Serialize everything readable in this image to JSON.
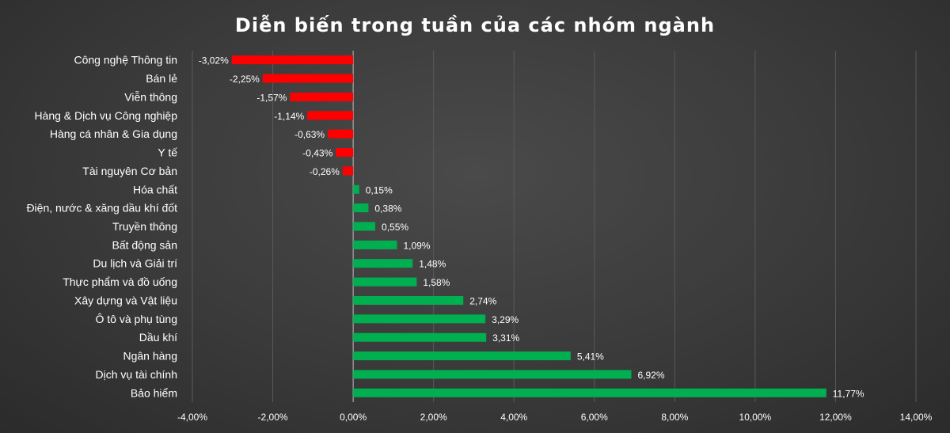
{
  "chart_data": {
    "type": "bar",
    "orientation": "horizontal",
    "title": "Diễn biến trong tuần của các nhóm ngành",
    "xlabel": "",
    "ylabel": "",
    "xlim": [
      -4,
      14
    ],
    "x_ticks": [
      -4,
      -2,
      0,
      2,
      4,
      6,
      8,
      10,
      12,
      14
    ],
    "x_tick_labels": [
      "-4,00%",
      "-2,00%",
      "0,00%",
      "2,00%",
      "4,00%",
      "6,00%",
      "8,00%",
      "10,00%",
      "12,00%",
      "14,00%"
    ],
    "grid": true,
    "legend": "none",
    "colors": {
      "negative": "#ff0000",
      "positive": "#00b050"
    },
    "categories": [
      "Công nghệ Thông tin",
      "Bán lẻ",
      "Viễn thông",
      "Hàng & Dịch vụ Công nghiệp",
      "Hàng cá nhân & Gia dụng",
      "Y tế",
      "Tài nguyên Cơ bản",
      "Hóa chất",
      "Điện, nước & xăng dầu khí đốt",
      "Truyền thông",
      "Bất động sản",
      "Du lịch và Giải trí",
      "Thực phẩm và đồ uống",
      "Xây dựng và Vật liệu",
      "Ô tô và phụ tùng",
      "Dầu khí",
      "Ngân hàng",
      "Dịch vụ tài chính",
      "Bảo hiểm"
    ],
    "values": [
      -3.02,
      -2.25,
      -1.57,
      -1.14,
      -0.63,
      -0.43,
      -0.26,
      0.15,
      0.38,
      0.55,
      1.09,
      1.48,
      1.58,
      2.74,
      3.29,
      3.31,
      5.41,
      6.92,
      11.77
    ],
    "value_labels": [
      "-3,02%",
      "-2,25%",
      "-1,57%",
      "-1,14%",
      "-0,63%",
      "-0,43%",
      "-0,26%",
      "0,15%",
      "0,38%",
      "0,55%",
      "1,09%",
      "1,48%",
      "1,58%",
      "2,74%",
      "3,29%",
      "3,31%",
      "5,41%",
      "6,92%",
      "11,77%"
    ]
  }
}
